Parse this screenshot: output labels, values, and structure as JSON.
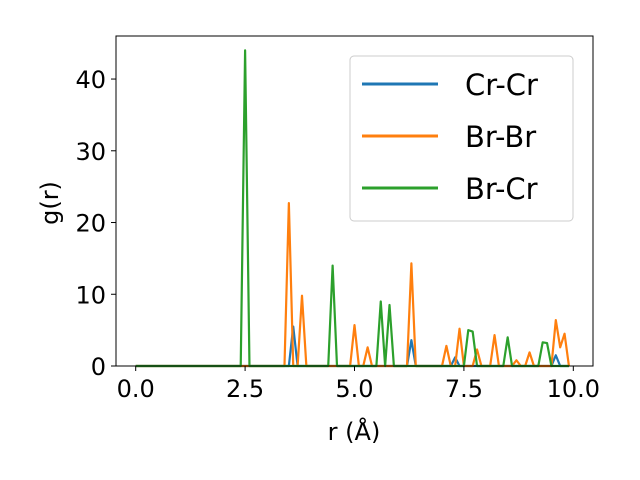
{
  "chart_data": {
    "type": "line",
    "xlabel": "r (Å)",
    "ylabel": "g(r)",
    "xlim": [
      -0.45,
      10.45
    ],
    "ylim": [
      0,
      46
    ],
    "xticks": [
      0.0,
      2.5,
      5.0,
      7.5,
      10.0
    ],
    "xtick_labels": [
      "0.0",
      "2.5",
      "5.0",
      "7.5",
      "10.0"
    ],
    "yticks": [
      0,
      10,
      20,
      30,
      40
    ],
    "ytick_labels": [
      "0",
      "10",
      "20",
      "30",
      "40"
    ],
    "grid": false,
    "legend_position": "top-right",
    "series": [
      {
        "name": "Cr-Cr",
        "color": "#1f77b4",
        "points": [
          [
            0,
            0
          ],
          [
            3.5,
            0
          ],
          [
            3.6,
            5.5
          ],
          [
            3.7,
            0
          ],
          [
            6.2,
            0
          ],
          [
            6.3,
            3.6
          ],
          [
            6.4,
            0
          ],
          [
            7.2,
            0
          ],
          [
            7.3,
            1.2
          ],
          [
            7.4,
            0
          ],
          [
            9.5,
            0
          ],
          [
            9.6,
            1.5
          ],
          [
            9.7,
            0
          ],
          [
            9.9,
            0
          ]
        ]
      },
      {
        "name": "Br-Br",
        "color": "#ff7f0e",
        "points": [
          [
            0,
            0
          ],
          [
            3.4,
            0
          ],
          [
            3.5,
            22.7
          ],
          [
            3.6,
            0
          ],
          [
            3.7,
            0
          ],
          [
            3.8,
            9.8
          ],
          [
            3.9,
            0
          ],
          [
            4.9,
            0
          ],
          [
            5.0,
            5.7
          ],
          [
            5.1,
            0
          ],
          [
            5.2,
            0
          ],
          [
            5.3,
            2.6
          ],
          [
            5.4,
            0
          ],
          [
            6.2,
            0
          ],
          [
            6.3,
            14.3
          ],
          [
            6.4,
            0
          ],
          [
            7.0,
            0
          ],
          [
            7.1,
            2.8
          ],
          [
            7.2,
            0
          ],
          [
            7.3,
            0
          ],
          [
            7.4,
            5.2
          ],
          [
            7.5,
            0
          ],
          [
            7.7,
            0
          ],
          [
            7.8,
            2.3
          ],
          [
            7.9,
            0
          ],
          [
            8.1,
            0
          ],
          [
            8.2,
            4.3
          ],
          [
            8.3,
            0
          ],
          [
            8.6,
            0
          ],
          [
            8.7,
            0.8
          ],
          [
            8.8,
            0
          ],
          [
            8.9,
            0
          ],
          [
            9.0,
            1.9
          ],
          [
            9.1,
            0
          ],
          [
            9.5,
            0
          ],
          [
            9.6,
            6.4
          ],
          [
            9.7,
            2.6
          ],
          [
            9.8,
            4.5
          ],
          [
            9.9,
            0
          ]
        ]
      },
      {
        "name": "Br-Cr",
        "color": "#2ca02c",
        "points": [
          [
            0,
            0
          ],
          [
            2.4,
            0
          ],
          [
            2.5,
            44
          ],
          [
            2.6,
            0
          ],
          [
            4.4,
            0
          ],
          [
            4.5,
            14
          ],
          [
            4.6,
            0
          ],
          [
            5.5,
            0
          ],
          [
            5.6,
            9
          ],
          [
            5.7,
            0
          ],
          [
            5.8,
            8.5
          ],
          [
            5.9,
            0
          ],
          [
            7.5,
            0
          ],
          [
            7.6,
            5
          ],
          [
            7.7,
            4.8
          ],
          [
            7.8,
            0
          ],
          [
            8.4,
            0
          ],
          [
            8.5,
            4
          ],
          [
            8.6,
            0
          ],
          [
            9.2,
            0
          ],
          [
            9.3,
            3.3
          ],
          [
            9.4,
            3.2
          ],
          [
            9.5,
            0
          ],
          [
            9.9,
            0
          ]
        ]
      }
    ]
  }
}
